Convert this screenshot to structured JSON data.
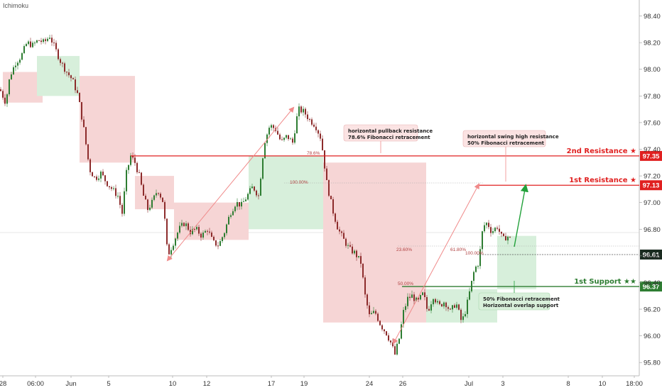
{
  "indicator_label": "Ichimoku",
  "colors": {
    "bull": "#2e7d32",
    "bear": "#8d2c2c",
    "resistance": "#e02020",
    "support": "#2e7d32",
    "arrow_red": "#f08a8a",
    "arrow_green": "#22a13a",
    "cloud_red": "#f6d5d5",
    "cloud_green": "#d7efdb",
    "note_red_bg": "#fbe3e3",
    "note_green_bg": "#d8f0da"
  },
  "chart_data": {
    "type": "candlestick",
    "y_axis_ticks": [
      "98.40",
      "98.20",
      "98.00",
      "97.80",
      "97.60",
      "97.40",
      "97.20",
      "97.00",
      "96.80",
      "96.60",
      "96.40",
      "96.20",
      "96.00",
      "95.80"
    ],
    "x_axis_ticks": [
      "28",
      "06:00",
      "Jun",
      "5",
      "10",
      "12",
      "17",
      "19",
      "24",
      "26",
      "Jul",
      "3",
      "8",
      "10",
      "18:00"
    ],
    "ylim": [
      95.7,
      98.52
    ],
    "grid": false,
    "levels": [
      {
        "name": "2nd Resistance ★",
        "value": "97.35",
        "y": 97.35,
        "kind": "resistance"
      },
      {
        "name": "1st Resistance ★",
        "value": "97.13",
        "y": 97.13,
        "kind": "resistance"
      },
      {
        "name": "",
        "value": "96.61",
        "y": 96.61,
        "kind": "neutral"
      },
      {
        "name": "1st Support ★★",
        "value": "96.37",
        "y": 96.37,
        "kind": "support"
      }
    ],
    "fib_labels": [
      {
        "text": "78.6%",
        "y": 97.35
      },
      {
        "text": "100.00%",
        "y": 97.13
      },
      {
        "text": "23.60%",
        "y": 96.625
      },
      {
        "text": "61.80%",
        "y": 96.625
      },
      {
        "text": "100.00%",
        "y": 96.6
      },
      {
        "text": "50.00%",
        "y": 96.37
      }
    ],
    "annotations": [
      {
        "line1": "horizontal pullback resistance",
        "line2": "78.6% Fibonacci retracement"
      },
      {
        "line1": "horizontal swing high resistance",
        "line2": "50% Fibonacci retracement"
      },
      {
        "line1": "50% Fibonacci retracement",
        "line2": "Horizontal overlap support"
      }
    ],
    "price_path": [
      [
        0,
        97.85
      ],
      [
        8,
        97.75
      ],
      [
        14,
        97.95
      ],
      [
        22,
        98.05
      ],
      [
        30,
        98.1
      ],
      [
        38,
        98.2
      ],
      [
        46,
        98.18
      ],
      [
        54,
        98.22
      ],
      [
        62,
        98.2
      ],
      [
        70,
        98.25
      ],
      [
        78,
        98.15
      ],
      [
        86,
        98.05
      ],
      [
        94,
        97.98
      ],
      [
        102,
        97.92
      ],
      [
        110,
        97.8
      ],
      [
        118,
        97.55
      ],
      [
        126,
        97.25
      ],
      [
        134,
        97.18
      ],
      [
        142,
        97.22
      ],
      [
        150,
        97.15
      ],
      [
        158,
        97.1
      ],
      [
        166,
        97.05
      ],
      [
        172,
        96.92
      ],
      [
        178,
        97.22
      ],
      [
        184,
        97.35
      ],
      [
        190,
        97.3
      ],
      [
        196,
        97.2
      ],
      [
        202,
        97.05
      ],
      [
        208,
        96.95
      ],
      [
        214,
        97.0
      ],
      [
        222,
        97.1
      ],
      [
        230,
        97.0
      ],
      [
        236,
        96.6
      ],
      [
        244,
        96.7
      ],
      [
        252,
        96.8
      ],
      [
        260,
        96.85
      ],
      [
        268,
        96.78
      ],
      [
        276,
        96.8
      ],
      [
        284,
        96.75
      ],
      [
        292,
        96.8
      ],
      [
        300,
        96.7
      ],
      [
        308,
        96.68
      ],
      [
        316,
        96.78
      ],
      [
        324,
        96.92
      ],
      [
        332,
        97.0
      ],
      [
        340,
        96.98
      ],
      [
        348,
        97.05
      ],
      [
        356,
        97.12
      ],
      [
        364,
        97.05
      ],
      [
        372,
        97.45
      ],
      [
        380,
        97.58
      ],
      [
        388,
        97.55
      ],
      [
        396,
        97.45
      ],
      [
        404,
        97.5
      ],
      [
        412,
        97.45
      ],
      [
        420,
        97.7
      ],
      [
        428,
        97.68
      ],
      [
        436,
        97.62
      ],
      [
        444,
        97.58
      ],
      [
        452,
        97.48
      ],
      [
        460,
        97.15
      ],
      [
        468,
        96.95
      ],
      [
        476,
        96.8
      ],
      [
        484,
        96.72
      ],
      [
        492,
        96.65
      ],
      [
        500,
        96.62
      ],
      [
        508,
        96.55
      ],
      [
        514,
        96.3
      ],
      [
        520,
        96.15
      ],
      [
        528,
        96.18
      ],
      [
        536,
        96.08
      ],
      [
        544,
        96.02
      ],
      [
        550,
        95.95
      ],
      [
        556,
        95.86
      ],
      [
        562,
        95.98
      ],
      [
        568,
        96.18
      ],
      [
        574,
        96.28
      ],
      [
        580,
        96.3
      ],
      [
        588,
        96.25
      ],
      [
        596,
        96.32
      ],
      [
        602,
        96.18
      ],
      [
        610,
        96.3
      ],
      [
        618,
        96.22
      ],
      [
        626,
        96.26
      ],
      [
        634,
        96.18
      ],
      [
        642,
        96.25
      ],
      [
        650,
        96.1
      ],
      [
        656,
        96.2
      ],
      [
        662,
        96.35
      ],
      [
        668,
        96.5
      ],
      [
        674,
        96.55
      ],
      [
        680,
        96.82
      ],
      [
        686,
        96.85
      ],
      [
        692,
        96.78
      ],
      [
        700,
        96.82
      ],
      [
        708,
        96.72
      ],
      [
        714,
        96.75
      ],
      [
        720,
        96.72
      ]
    ],
    "cloud": [
      {
        "x1": 4,
        "x2": 60,
        "top": 97.98,
        "bottom": 97.75,
        "kind": "red"
      },
      {
        "x1": 52,
        "x2": 112,
        "top": 98.1,
        "bottom": 97.8,
        "kind": "green"
      },
      {
        "x1": 112,
        "x2": 190,
        "top": 97.95,
        "bottom": 97.3,
        "kind": "red"
      },
      {
        "x1": 190,
        "x2": 245,
        "top": 97.2,
        "bottom": 96.95,
        "kind": "red"
      },
      {
        "x1": 245,
        "x2": 350,
        "top": 97.0,
        "bottom": 96.72,
        "kind": "red"
      },
      {
        "x1": 350,
        "x2": 455,
        "top": 97.35,
        "bottom": 96.8,
        "kind": "green"
      },
      {
        "x1": 455,
        "x2": 600,
        "top": 97.3,
        "bottom": 96.1,
        "kind": "red"
      },
      {
        "x1": 600,
        "x2": 700,
        "top": 96.35,
        "bottom": 96.1,
        "kind": "green"
      },
      {
        "x1": 700,
        "x2": 755,
        "top": 96.75,
        "bottom": 96.35,
        "kind": "green"
      }
    ]
  }
}
